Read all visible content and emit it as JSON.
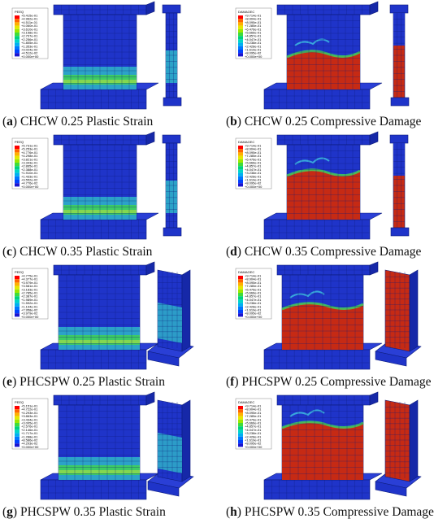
{
  "colors": {
    "base_blue": "#1f34c9",
    "mesh_line": "#0d1c7a",
    "green": "#3fcf5a",
    "teal": "#2fb6c8",
    "cyan": "#43d9e6",
    "yellow": "#d9e63a",
    "red": "#c62a14",
    "dark_red": "#9a1a0c"
  },
  "panels": [
    {
      "label": "a",
      "title": "CHCW 0.25 Plastic Strain",
      "legend_title": "PEEQ",
      "legend_values": [
        "+5.415e-01",
        "+4.962e-01",
        "+4.511e-01",
        "+4.060e-01",
        "+3.610e-01",
        "+3.158e-01",
        "+2.707e-01",
        "+2.256e-01",
        "+1.805e-01",
        "+1.353e-01",
        "+9.024e-02",
        "+4.512e-02",
        "+0.000e+00"
      ],
      "mode": "strain"
    },
    {
      "label": "b",
      "title": "CHCW 0.25 Compressive Damage",
      "legend_title": "DAMAGEC",
      "legend_values": [
        "+9.714e-01",
        "+8.904e-01",
        "+8.095e-01",
        "+7.285e-01",
        "+6.476e-01",
        "+5.666e-01",
        "+4.857e-01",
        "+4.047e-01",
        "+3.238e-01",
        "+2.428e-01",
        "+1.619e-01",
        "+8.095e-02",
        "+0.000e+00"
      ],
      "mode": "damage"
    },
    {
      "label": "c",
      "title": "CHCW 0.35 Plastic Strain",
      "legend_title": "PEEQ",
      "legend_values": [
        "+5.731e-01",
        "+5.253e-01",
        "+4.776e-01",
        "+4.298e-01",
        "+3.821e-01",
        "+3.343e-01",
        "+2.865e-01",
        "+2.388e-01",
        "+1.910e-01",
        "+1.433e-01",
        "+9.552e-02",
        "+4.776e-02",
        "+0.000e+00"
      ],
      "mode": "strain"
    },
    {
      "label": "d",
      "title": "CHCW 0.35 Compressive Damage",
      "legend_title": "DAMAGEC",
      "legend_values": [
        "+9.714e-01",
        "+8.904e-01",
        "+8.095e-01",
        "+7.285e-01",
        "+6.476e-01",
        "+5.666e-01",
        "+4.857e-01",
        "+4.047e-01",
        "+3.238e-01",
        "+2.428e-01",
        "+1.619e-01",
        "+8.095e-02",
        "+0.000e+00"
      ],
      "mode": "damage"
    },
    {
      "label": "e",
      "title": "PHCSPW 0.25 Plastic Strain",
      "legend_title": "PEEQ",
      "legend_values": [
        "+4.775e-01",
        "+4.377e-01",
        "+3.979e-01",
        "+3.581e-01",
        "+3.183e-01",
        "+2.785e-01",
        "+2.387e-01",
        "+1.989e-01",
        "+1.592e-01",
        "+1.194e-01",
        "+7.958e-02",
        "+3.979e-02",
        "+0.000e+00"
      ],
      "mode": "strain"
    },
    {
      "label": "f",
      "title": "PHCSPW 0.25 Compressive Damage",
      "legend_title": "DAMAGEC",
      "legend_values": [
        "+9.714e-01",
        "+8.904e-01",
        "+8.095e-01",
        "+7.285e-01",
        "+6.476e-01",
        "+5.666e-01",
        "+4.857e-01",
        "+4.047e-01",
        "+3.238e-01",
        "+2.428e-01",
        "+1.619e-01",
        "+8.095e-02",
        "+0.000e+00"
      ],
      "mode": "damage"
    },
    {
      "label": "g",
      "title": "PHCSPW 0.35 Plastic Strain",
      "legend_title": "PEEQ",
      "legend_values": [
        "+5.151e-01",
        "+4.722e-01",
        "+4.293e-01",
        "+3.863e-01",
        "+3.434e-01",
        "+3.005e-01",
        "+2.576e-01",
        "+2.146e-01",
        "+1.717e-01",
        "+1.288e-01",
        "+8.586e-02",
        "+4.293e-02",
        "+0.000e+00"
      ],
      "mode": "strain"
    },
    {
      "label": "h",
      "title": "PHCSPW 0.35 Compressive Damage",
      "legend_title": "DAMAGEC",
      "legend_values": [
        "+9.714e-01",
        "+8.904e-01",
        "+8.095e-01",
        "+7.285e-01",
        "+6.476e-01",
        "+5.666e-01",
        "+4.857e-01",
        "+4.047e-01",
        "+3.238e-01",
        "+2.428e-01",
        "+1.619e-01",
        "+8.095e-02",
        "+0.000e+00"
      ],
      "mode": "damage"
    }
  ]
}
